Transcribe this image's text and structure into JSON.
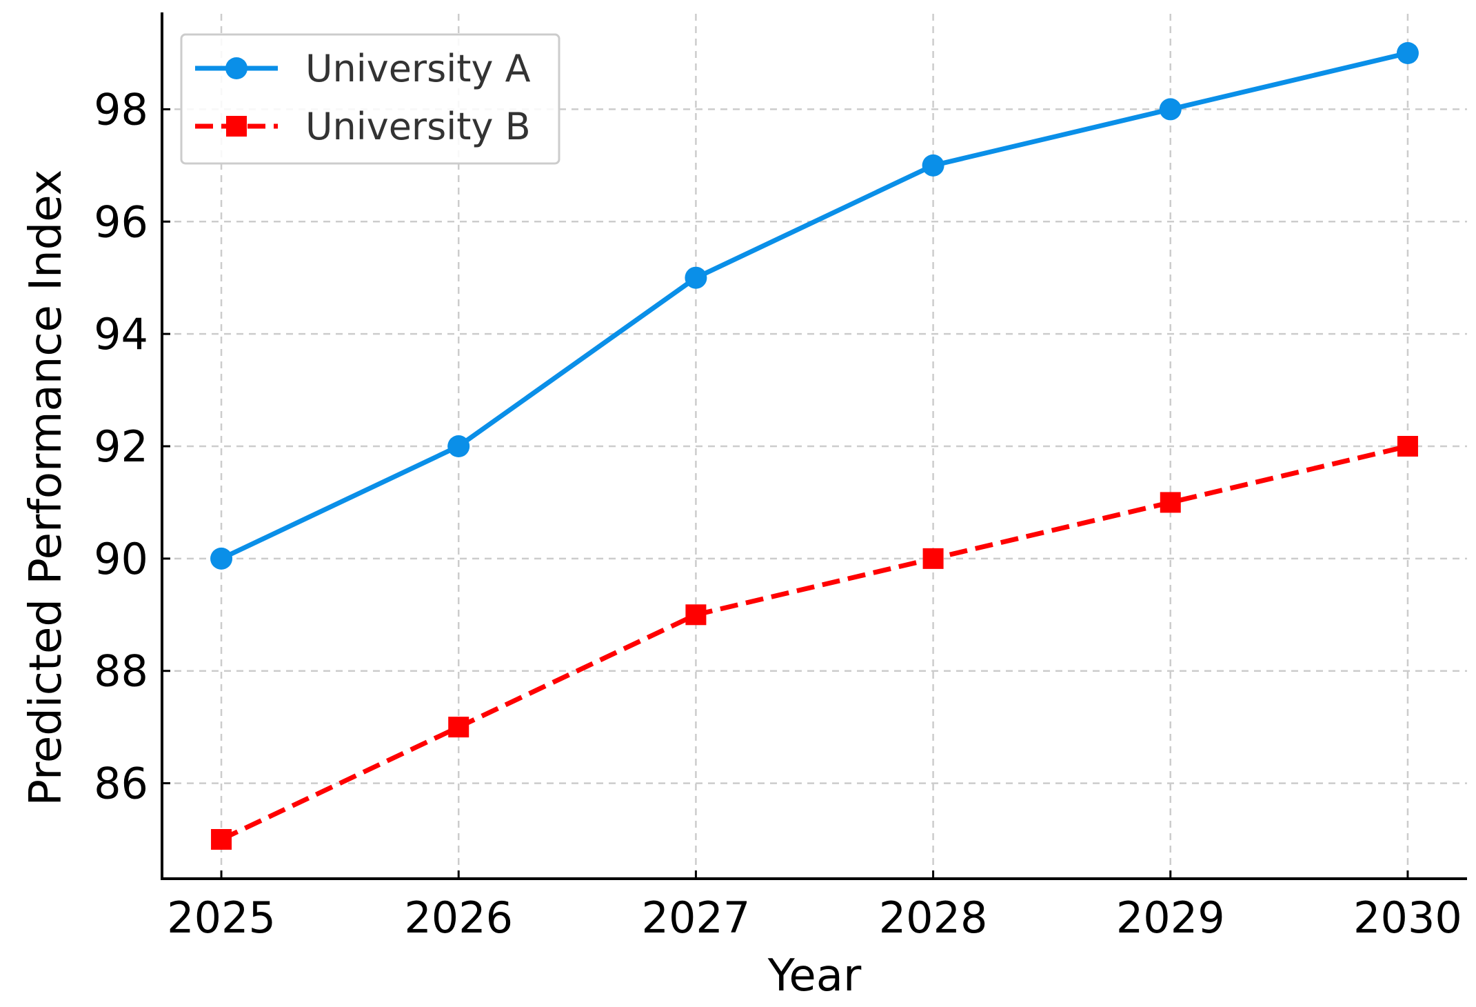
{
  "chart_data": {
    "type": "line",
    "title": "",
    "xlabel": "Year",
    "ylabel": "Predicted Performance Index",
    "x": [
      "2025",
      "2026",
      "2027",
      "2028",
      "2029",
      "2030"
    ],
    "xlim": [
      2024.75,
      2030.25
    ],
    "ylim": [
      84.3,
      99.7
    ],
    "yticks": [
      86,
      88,
      90,
      92,
      94,
      96,
      98
    ],
    "grid": true,
    "legend_position": "top-left",
    "series": [
      {
        "name": "University A",
        "values": [
          90,
          92,
          95,
          97,
          98,
          99
        ],
        "color": "#0a8fe8",
        "line_style": "solid",
        "marker": "circle"
      },
      {
        "name": "University B",
        "values": [
          85,
          87,
          89,
          90,
          91,
          92
        ],
        "color": "#ff0000",
        "line_style": "dashed",
        "marker": "square"
      }
    ]
  }
}
